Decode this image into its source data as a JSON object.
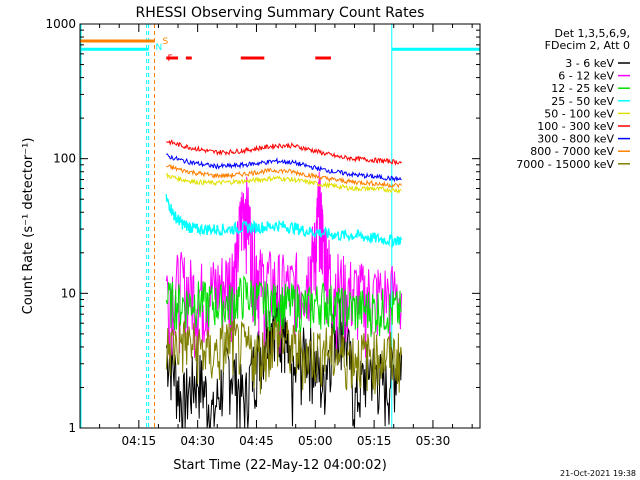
{
  "chart_data": {
    "type": "line",
    "title": "RHESSI Observing Summary Count Rates",
    "xlabel": "Start Time (22-May-12 04:00:02)",
    "ylabel": "Count Rate (s⁻¹ detector⁻¹)",
    "y_scale": "log",
    "ylim": [
      1,
      1000
    ],
    "xlim_minutes": [
      0,
      102
    ],
    "y_ticks": [
      {
        "value": 1,
        "label": "1"
      },
      {
        "value": 10,
        "label": "10"
      },
      {
        "value": 100,
        "label": "100"
      },
      {
        "value": 1000,
        "label": "1000"
      }
    ],
    "x_ticks": [
      {
        "value": 15,
        "label": "04:15"
      },
      {
        "value": 30,
        "label": "04:30"
      },
      {
        "value": 45,
        "label": "04:45"
      },
      {
        "value": 60,
        "label": "05:00"
      },
      {
        "value": 75,
        "label": "05:15"
      },
      {
        "value": 90,
        "label": "05:30"
      }
    ],
    "legend_header": [
      "Det 1,3,5,6,9,",
      "FDecim 2, Att 0"
    ],
    "legend_position": "right",
    "series": [
      {
        "name": "3 - 6 keV",
        "color": "#000000",
        "x": [
          22,
          26,
          30,
          34,
          38,
          42,
          46,
          50,
          52,
          54,
          58,
          62,
          66,
          70,
          74,
          78,
          82
        ],
        "y": [
          4,
          1.5,
          2.5,
          1.2,
          3,
          1.5,
          4,
          8,
          5,
          2,
          4,
          2,
          7,
          1.5,
          3,
          2,
          3.5
        ]
      },
      {
        "name": "6 - 12 keV",
        "color": "#ff00ff",
        "x": [
          22,
          26,
          30,
          34,
          38,
          40,
          42,
          44,
          46,
          50,
          54,
          58,
          60,
          61,
          62,
          64,
          68,
          72,
          76,
          82
        ],
        "y": [
          11,
          12,
          10,
          11,
          13,
          18,
          52,
          20,
          13,
          12,
          11,
          14,
          22,
          48,
          25,
          13,
          11,
          10,
          10,
          10
        ]
      },
      {
        "name": "12 - 25 keV",
        "color": "#00e000",
        "x": [
          22,
          26,
          30,
          34,
          38,
          42,
          46,
          50,
          54,
          58,
          62,
          66,
          70,
          74,
          78,
          82
        ],
        "y": [
          9,
          8.5,
          9,
          8.5,
          8.5,
          10,
          9,
          8.5,
          8.5,
          8,
          9,
          8,
          7.8,
          7.8,
          7.8,
          7.5
        ]
      },
      {
        "name": "25 - 50 keV",
        "color": "#00ffff",
        "x": [
          22,
          24,
          26,
          28,
          30,
          34,
          38,
          42,
          46,
          50,
          54,
          58,
          62,
          66,
          70,
          74,
          78,
          82
        ],
        "y": [
          50,
          38,
          33,
          31,
          30,
          30,
          30,
          31,
          31,
          32,
          31,
          29,
          28,
          27,
          27,
          26,
          25,
          25
        ]
      },
      {
        "name": "50 - 100 keV",
        "color": "#e0e000",
        "x": [
          22,
          26,
          30,
          34,
          38,
          42,
          46,
          50,
          54,
          58,
          62,
          66,
          70,
          74,
          78,
          82
        ],
        "y": [
          75,
          70,
          67,
          66,
          67,
          68,
          70,
          72,
          70,
          67,
          64,
          62,
          60,
          60,
          59,
          58
        ]
      },
      {
        "name": "100 - 300 keV",
        "color": "#ff0000",
        "x": [
          22,
          26,
          30,
          34,
          38,
          42,
          46,
          50,
          54,
          58,
          62,
          66,
          70,
          74,
          78,
          82
        ],
        "y": [
          135,
          125,
          118,
          112,
          112,
          115,
          120,
          125,
          125,
          118,
          110,
          103,
          100,
          98,
          96,
          94
        ]
      },
      {
        "name": "300 - 800 keV",
        "color": "#0000ff",
        "x": [
          22,
          26,
          30,
          34,
          38,
          42,
          46,
          50,
          54,
          58,
          62,
          66,
          70,
          74,
          78,
          82
        ],
        "y": [
          105,
          97,
          92,
          88,
          88,
          90,
          93,
          96,
          94,
          88,
          83,
          79,
          76,
          74,
          72,
          70
        ]
      },
      {
        "name": "800 - 7000 keV",
        "color": "#ff8000",
        "x": [
          22,
          26,
          30,
          34,
          38,
          42,
          46,
          50,
          54,
          58,
          62,
          66,
          70,
          74,
          78,
          82
        ],
        "y": [
          88,
          82,
          78,
          75,
          75,
          77,
          80,
          82,
          80,
          76,
          72,
          69,
          67,
          66,
          64,
          63
        ]
      },
      {
        "name": "7000 - 15000 keV",
        "color": "#808000",
        "x": [
          22,
          26,
          30,
          34,
          38,
          42,
          46,
          50,
          54,
          58,
          62,
          66,
          70,
          74,
          78,
          82
        ],
        "y": [
          4,
          4.5,
          4,
          3.5,
          4.5,
          4,
          3.5,
          5,
          4,
          3.5,
          4,
          3.5,
          3.5,
          3.5,
          3.5,
          3.5
        ]
      }
    ],
    "saa_level": 650,
    "saa_intervals_minutes": [
      [
        0,
        17.5
      ],
      [
        79.5,
        102
      ]
    ],
    "night_boundaries_minutes": [
      17,
      19
    ],
    "flag_labels": [
      {
        "text": "S",
        "color": "#ff8000"
      },
      {
        "text": "N",
        "color": "#00ffff"
      },
      {
        "text": "F",
        "color": "#ff0000"
      }
    ],
    "flag_S_minutes": [
      0,
      19
    ],
    "flag_F_minutes": [
      [
        22,
        25
      ],
      [
        27,
        28.5
      ],
      [
        41,
        47
      ],
      [
        60,
        64
      ]
    ],
    "footer_date": "21-Oct-2021 19:38"
  }
}
